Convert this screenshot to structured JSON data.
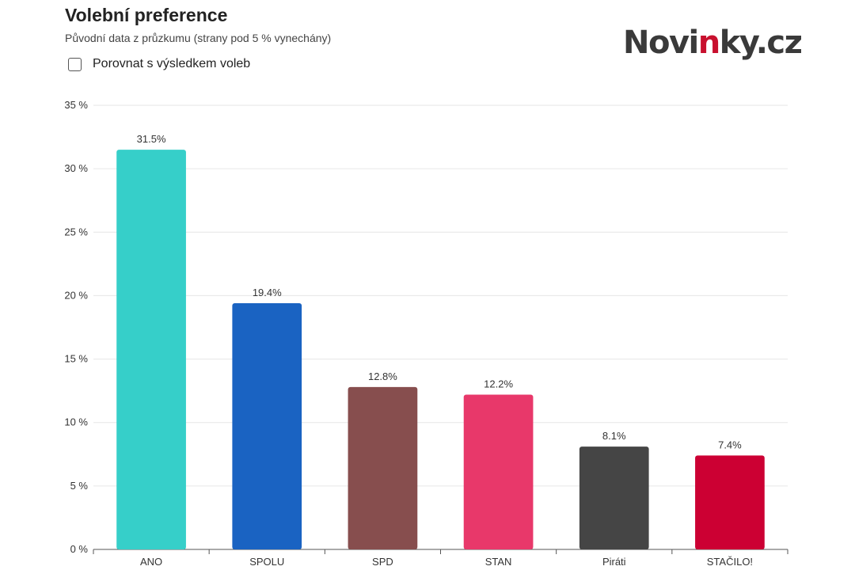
{
  "header": {
    "title": "Volební preference",
    "subtitle": "Původní data z průzkumu (strany pod 5 % vynechány)",
    "logo_main": "Novi",
    "logo_accent": "n",
    "logo_rest": "ky.cz"
  },
  "controls": {
    "compare_label": "Porovnat s výsledkem voleb",
    "compare_checked": false
  },
  "chart_data": {
    "type": "bar",
    "title": "Volební preference",
    "subtitle": "Původní data z průzkumu (strany pod 5 % vynechány)",
    "categories": [
      "ANO",
      "SPOLU",
      "SPD",
      "STAN",
      "Piráti",
      "STAČILO!"
    ],
    "values": [
      31.5,
      19.4,
      12.8,
      12.2,
      8.1,
      7.4
    ],
    "value_labels": [
      "31.5%",
      "19.4%",
      "12.8%",
      "12.2%",
      "8.1%",
      "7.4%"
    ],
    "colors": [
      "#36cfc9",
      "#1a63c2",
      "#874e4e",
      "#e8386a",
      "#454545",
      "#cc0033"
    ],
    "ylim": [
      0,
      35
    ],
    "y_ticks": [
      0,
      5,
      10,
      15,
      20,
      25,
      30,
      35
    ],
    "y_tick_labels": [
      "0 %",
      "5 %",
      "10 %",
      "15 %",
      "20 %",
      "25 %",
      "30 %",
      "35 %"
    ],
    "grid": true,
    "xlabel": "",
    "ylabel": ""
  }
}
